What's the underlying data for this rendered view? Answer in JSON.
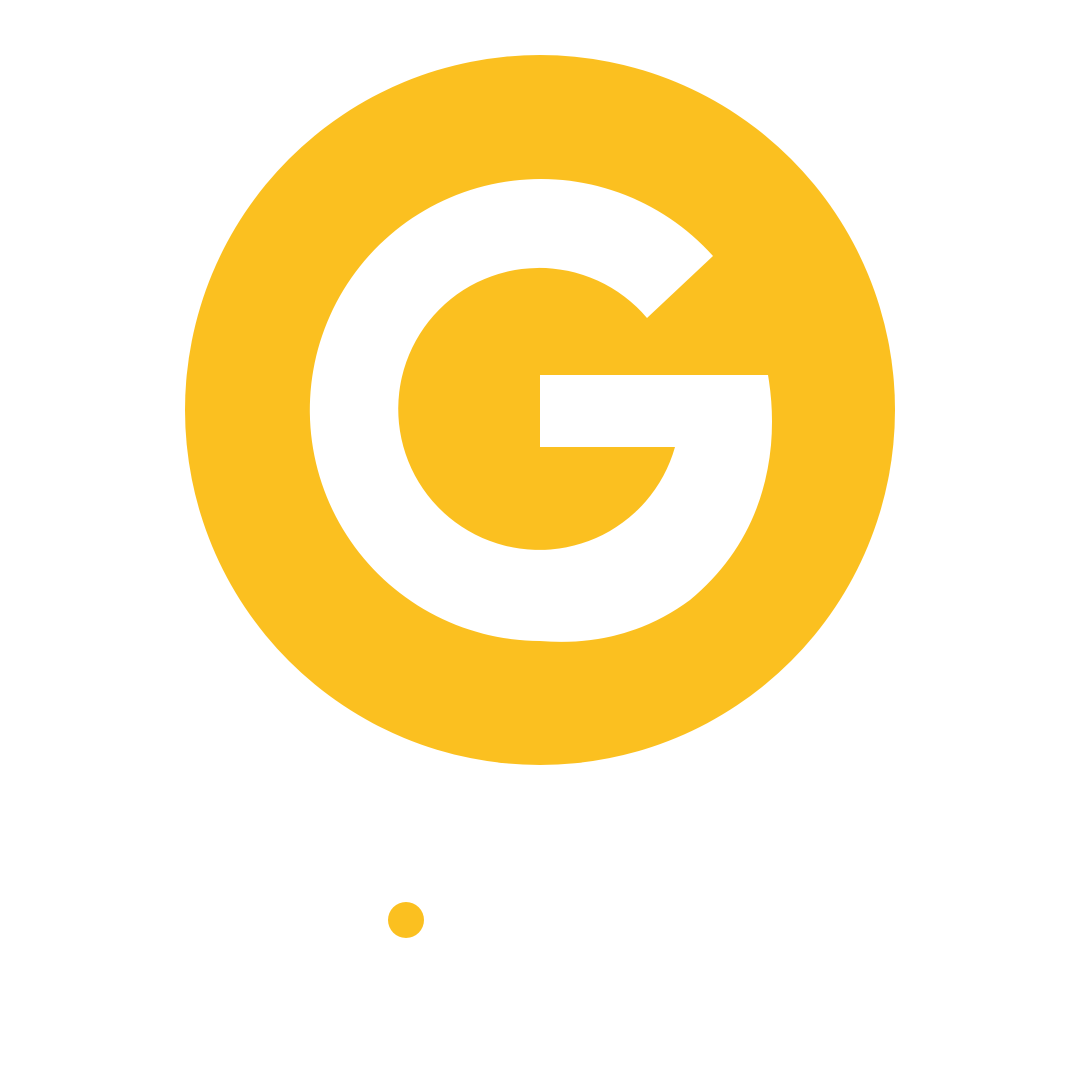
{
  "logo": {
    "icon": "g-logo-icon",
    "color": "#FBC020",
    "background": "#FFFFFF"
  },
  "indicator": {
    "icon": "dot-icon",
    "color": "#FBC020"
  }
}
